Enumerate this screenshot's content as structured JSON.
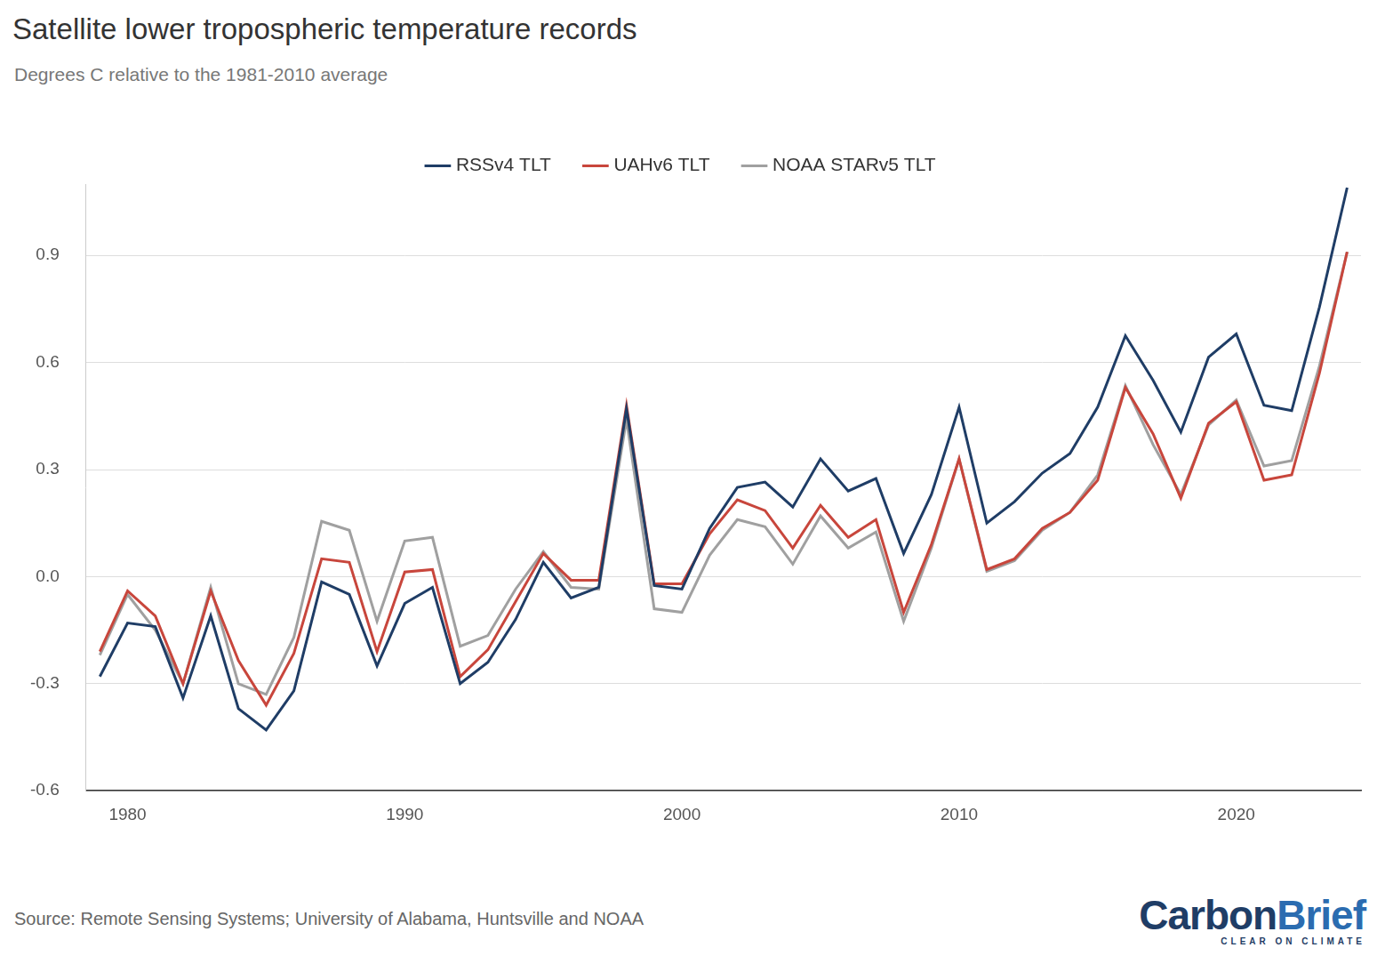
{
  "chart_data": {
    "type": "line",
    "title": "Satellite lower tropospheric temperature records",
    "subtitle": "Degrees C relative to the 1981-2010 average",
    "source": "Source: Remote Sensing Systems; University of Alabama, Huntsville and NOAA",
    "logo": [
      "Carbon",
      "Brief"
    ],
    "logo_tagline": "CLEAR ON CLIMATE",
    "legend": "top",
    "grid": true,
    "x": [
      1979,
      1980,
      1981,
      1982,
      1983,
      1984,
      1985,
      1986,
      1987,
      1988,
      1989,
      1990,
      1991,
      1992,
      1993,
      1994,
      1995,
      1996,
      1997,
      1998,
      1999,
      2000,
      2001,
      2002,
      2003,
      2004,
      2005,
      2006,
      2007,
      2008,
      2009,
      2010,
      2011,
      2012,
      2013,
      2014,
      2015,
      2016,
      2017,
      2018,
      2019,
      2020,
      2021,
      2022,
      2023,
      2024
    ],
    "xlim": [
      1978.5,
      2024.5
    ],
    "xticks": [
      1980,
      1990,
      2000,
      2010,
      2020
    ],
    "ylim": [
      -0.6,
      1.1
    ],
    "yticks": [
      -0.6,
      -0.3,
      {
        "value": 0,
        "label": "0.0"
      },
      0.3,
      0.6,
      0.9
    ],
    "series": [
      {
        "name": "RSSv4 TLT",
        "color": "#1f3d66",
        "values": [
          -0.28,
          -0.13,
          -0.14,
          -0.34,
          -0.11,
          -0.37,
          -0.43,
          -0.32,
          -0.015,
          -0.05,
          -0.25,
          -0.075,
          -0.03,
          -0.3,
          -0.24,
          -0.12,
          0.04,
          -0.06,
          -0.03,
          0.47,
          -0.025,
          -0.035,
          0.135,
          0.25,
          0.265,
          0.195,
          0.33,
          0.24,
          0.275,
          0.065,
          0.23,
          0.475,
          0.15,
          0.21,
          0.29,
          0.345,
          0.475,
          0.675,
          0.55,
          0.405,
          0.615,
          0.68,
          0.48,
          0.465,
          0.755,
          1.09
        ]
      },
      {
        "name": "UAHv6 TLT",
        "color": "#c8463c",
        "values": [
          -0.21,
          -0.04,
          -0.11,
          -0.3,
          -0.04,
          -0.235,
          -0.36,
          -0.215,
          0.05,
          0.04,
          -0.21,
          0.013,
          0.02,
          -0.28,
          -0.205,
          -0.07,
          0.065,
          -0.01,
          -0.01,
          0.48,
          -0.02,
          -0.02,
          0.12,
          0.215,
          0.185,
          0.08,
          0.2,
          0.11,
          0.16,
          -0.1,
          0.09,
          0.33,
          0.02,
          0.05,
          0.135,
          0.18,
          0.27,
          0.53,
          0.4,
          0.22,
          0.43,
          0.49,
          0.27,
          0.285,
          0.57,
          0.91
        ]
      },
      {
        "name": "NOAA STARv5 TLT",
        "color": "#a0a0a0",
        "values": [
          -0.22,
          -0.05,
          -0.15,
          -0.3,
          -0.03,
          -0.3,
          -0.33,
          -0.17,
          0.155,
          0.13,
          -0.125,
          0.1,
          0.11,
          -0.195,
          -0.165,
          -0.035,
          0.07,
          -0.03,
          -0.035,
          0.44,
          -0.09,
          -0.1,
          0.06,
          0.16,
          0.14,
          0.035,
          0.17,
          0.08,
          0.125,
          -0.125,
          0.08,
          0.33,
          0.015,
          0.045,
          0.13,
          0.18,
          0.285,
          0.535,
          0.37,
          0.23,
          0.425,
          0.495,
          0.31,
          0.325,
          0.59,
          0.91
        ]
      }
    ]
  }
}
